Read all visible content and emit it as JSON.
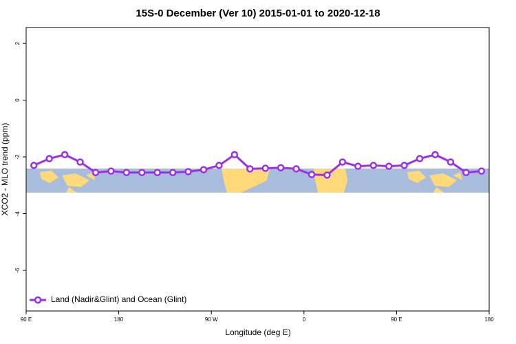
{
  "chart_data": {
    "type": "line",
    "title": "15S-0 December (Ver 10)   2015-01-01 to 2020-12-18",
    "x_label": "Longitude (deg E)",
    "y_label": "XCO2 - MLO trend (ppm)",
    "x": [
      97.5,
      112.5,
      127.5,
      142.5,
      157.5,
      172.5,
      187.5,
      202.5,
      217.5,
      232.5,
      247.5,
      262.5,
      277.5,
      292.5,
      307.5,
      322.5,
      337.5,
      352.5,
      367.5,
      382.5,
      397.5,
      412.5,
      427.5,
      442.5,
      457.5,
      472.5,
      487.5,
      502.5,
      517.5,
      532.5
    ],
    "series": [
      {
        "name": "Land (Nadir&Glint) and Ocean (Glint)",
        "color": "#9b30e6",
        "values": [
          -2.3,
          -2.06,
          -1.92,
          -2.18,
          -2.55,
          -2.5,
          -2.55,
          -2.55,
          -2.55,
          -2.55,
          -2.52,
          -2.45,
          -2.3,
          -1.92,
          -2.42,
          -2.4,
          -2.38,
          -2.42,
          -2.62,
          -2.64,
          -2.18,
          -2.33,
          -2.3,
          -2.33,
          -2.3,
          -2.06,
          -1.92,
          -2.18,
          -2.55,
          -2.5
        ]
      }
    ],
    "xlim": [
      90,
      540
    ],
    "xticks": [
      {
        "value": 90,
        "label": "90 E"
      },
      180,
      {
        "value": 270,
        "label": "90 W"
      },
      {
        "value": 360,
        "label": "0"
      },
      {
        "value": 450,
        "label": "90 E"
      },
      {
        "value": 540,
        "label": "180"
      }
    ],
    "ylim": [
      -7.43,
      2.56
    ],
    "yticks": [
      2,
      0,
      -2,
      -4,
      -6
    ],
    "legend": "bottom-left"
  }
}
